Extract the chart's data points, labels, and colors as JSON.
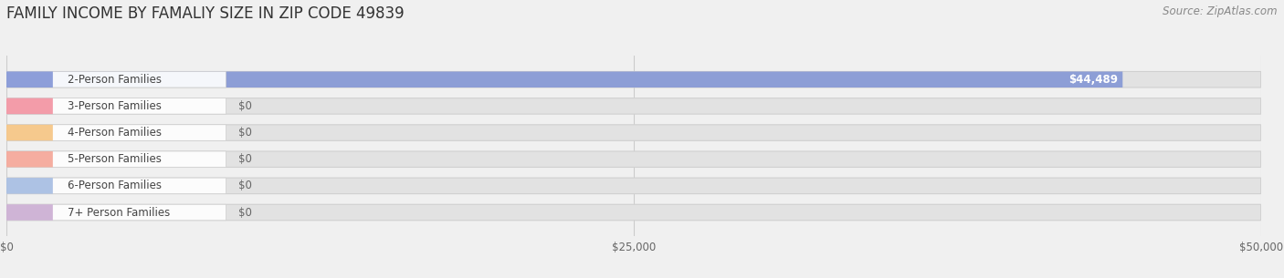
{
  "title": "FAMILY INCOME BY FAMALIY SIZE IN ZIP CODE 49839",
  "source": "Source: ZipAtlas.com",
  "categories": [
    "2-Person Families",
    "3-Person Families",
    "4-Person Families",
    "5-Person Families",
    "6-Person Families",
    "7+ Person Families"
  ],
  "values": [
    44489,
    0,
    0,
    0,
    0,
    0
  ],
  "bar_colors": [
    "#7b8fd4",
    "#f28b9b",
    "#f5c07a",
    "#f4a090",
    "#a0b8e0",
    "#c8a8d0"
  ],
  "xlim_max": 50000,
  "xticks": [
    0,
    25000,
    50000
  ],
  "xtick_labels": [
    "$0",
    "$25,000",
    "$50,000"
  ],
  "value_labels": [
    "$44,489",
    "$0",
    "$0",
    "$0",
    "$0",
    "$0"
  ],
  "background_color": "#f0f0f0",
  "bar_bg_color": "#e2e2e2",
  "title_fontsize": 12,
  "label_fontsize": 8.5,
  "value_fontsize": 8.5,
  "source_fontsize": 8.5
}
